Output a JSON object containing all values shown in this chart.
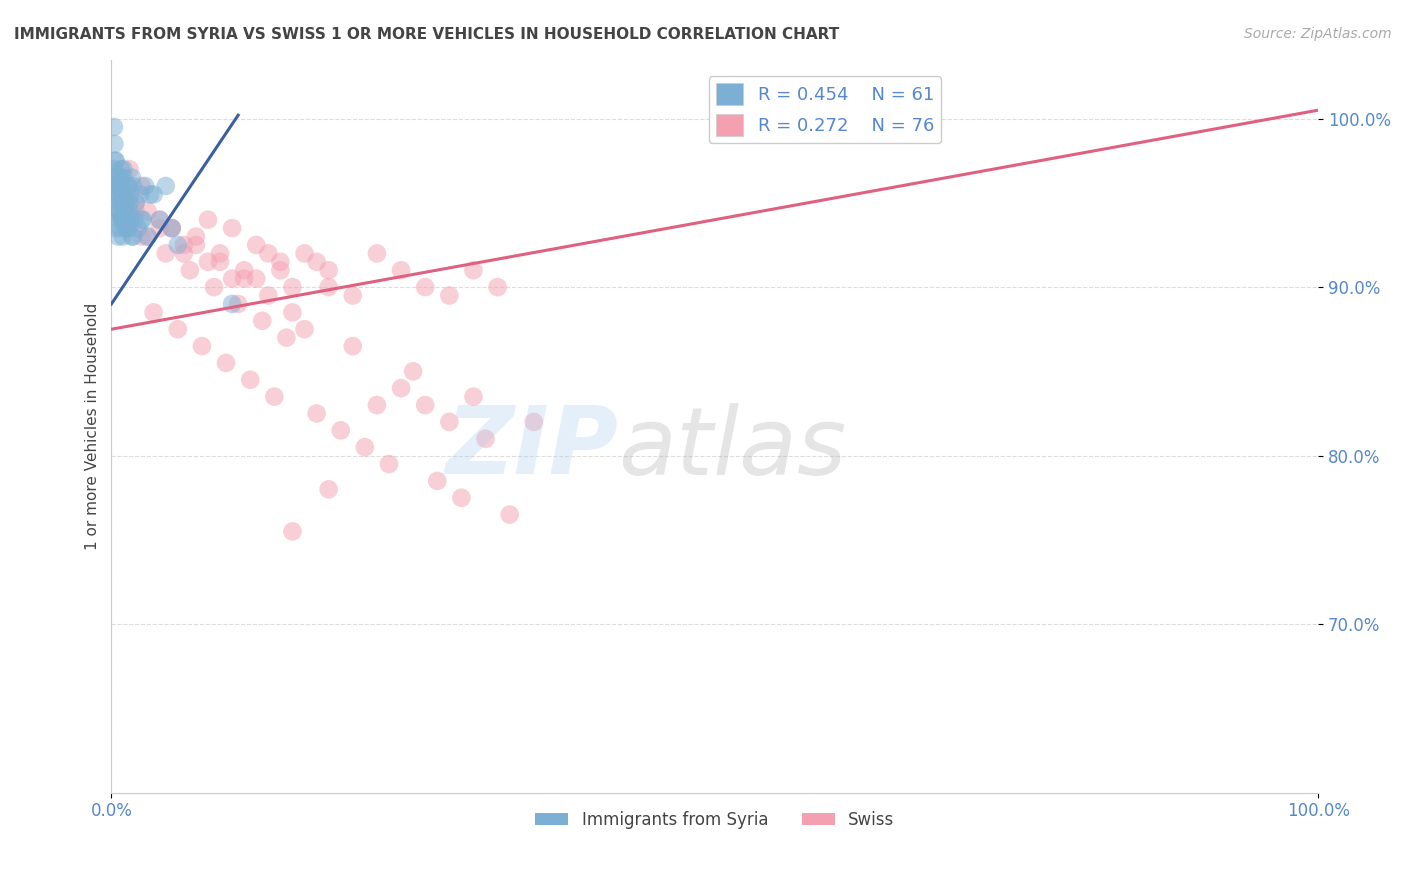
{
  "title": "IMMIGRANTS FROM SYRIA VS SWISS 1 OR MORE VEHICLES IN HOUSEHOLD CORRELATION CHART",
  "source_text": "Source: ZipAtlas.com",
  "ylabel": "1 or more Vehicles in Household",
  "xlim": [
    0.0,
    100.0
  ],
  "ylim": [
    60.0,
    103.5
  ],
  "y_ticks": [
    70.0,
    80.0,
    90.0,
    100.0
  ],
  "y_tick_labels": [
    "70.0%",
    "80.0%",
    "90.0%",
    "100.0%"
  ],
  "x_tick_labels": [
    "0.0%",
    "100.0%"
  ],
  "legend_r_blue": "R = 0.454",
  "legend_n_blue": "N = 61",
  "legend_r_pink": "R = 0.272",
  "legend_n_pink": "N = 76",
  "blue_color": "#7BAFD4",
  "pink_color": "#F4A0B0",
  "blue_line_color": "#3B5FA0",
  "pink_line_color": "#E06080",
  "title_color": "#444444",
  "axis_label_color": "#444444",
  "tick_color": "#5588CC",
  "source_color": "#AAAAAA",
  "grid_color": "#DDDDDD",
  "blue_scatter_x": [
    0.1,
    0.15,
    0.2,
    0.25,
    0.3,
    0.35,
    0.4,
    0.45,
    0.5,
    0.55,
    0.6,
    0.65,
    0.7,
    0.75,
    0.8,
    0.85,
    0.9,
    0.95,
    1.0,
    1.1,
    1.2,
    1.3,
    1.4,
    1.5,
    1.6,
    1.7,
    1.8,
    1.9,
    2.0,
    2.2,
    2.4,
    2.6,
    2.8,
    3.0,
    3.5,
    4.0,
    4.5,
    5.0,
    0.3,
    0.4,
    0.5,
    0.6,
    0.7,
    0.8,
    0.9,
    1.0,
    1.1,
    1.2,
    1.3,
    1.4,
    1.5,
    1.6,
    1.7,
    1.8,
    0.2,
    0.25,
    0.35,
    2.5,
    3.2,
    5.5,
    10.0
  ],
  "blue_scatter_y": [
    96.5,
    95.5,
    97.0,
    94.5,
    96.0,
    93.5,
    95.5,
    94.0,
    96.0,
    93.0,
    95.0,
    94.5,
    96.5,
    93.5,
    97.0,
    94.0,
    95.5,
    93.0,
    96.5,
    94.0,
    95.0,
    93.5,
    96.0,
    94.5,
    95.5,
    93.0,
    96.0,
    94.0,
    95.0,
    93.5,
    95.5,
    94.0,
    96.0,
    93.0,
    95.5,
    94.0,
    96.0,
    93.5,
    97.5,
    96.5,
    95.5,
    94.5,
    96.0,
    95.0,
    94.0,
    97.0,
    95.5,
    94.5,
    96.0,
    93.5,
    95.0,
    94.0,
    96.5,
    93.0,
    99.5,
    98.5,
    97.5,
    94.0,
    95.5,
    92.5,
    89.0
  ],
  "pink_scatter_x": [
    0.5,
    1.0,
    1.5,
    2.0,
    2.5,
    3.0,
    4.0,
    5.0,
    6.0,
    7.0,
    8.0,
    9.0,
    10.0,
    11.0,
    12.0,
    13.0,
    14.0,
    15.0,
    17.0,
    18.0,
    20.0,
    22.0,
    24.0,
    26.0,
    28.0,
    30.0,
    32.0,
    2.0,
    4.0,
    6.0,
    8.0,
    10.0,
    12.0,
    14.0,
    16.0,
    18.0,
    3.0,
    5.0,
    7.0,
    9.0,
    11.0,
    13.0,
    15.0,
    16.0,
    20.0,
    25.0,
    30.0,
    35.0,
    1.0,
    2.5,
    4.5,
    6.5,
    8.5,
    10.5,
    12.5,
    14.5,
    22.0,
    3.5,
    5.5,
    7.5,
    9.5,
    11.5,
    13.5,
    17.0,
    19.0,
    21.0,
    23.0,
    27.0,
    29.0,
    33.0,
    24.0,
    26.0,
    28.0,
    31.0,
    18.0,
    15.0
  ],
  "pink_scatter_y": [
    96.0,
    95.0,
    97.0,
    94.5,
    96.0,
    93.0,
    94.0,
    93.5,
    92.5,
    93.0,
    94.0,
    92.0,
    93.5,
    91.0,
    90.5,
    92.0,
    91.5,
    90.0,
    91.5,
    90.0,
    89.5,
    92.0,
    91.0,
    90.0,
    89.5,
    91.0,
    90.0,
    95.0,
    93.5,
    92.0,
    91.5,
    90.5,
    92.5,
    91.0,
    92.0,
    91.0,
    94.5,
    93.5,
    92.5,
    91.5,
    90.5,
    89.5,
    88.5,
    87.5,
    86.5,
    85.0,
    83.5,
    82.0,
    94.0,
    93.0,
    92.0,
    91.0,
    90.0,
    89.0,
    88.0,
    87.0,
    83.0,
    88.5,
    87.5,
    86.5,
    85.5,
    84.5,
    83.5,
    82.5,
    81.5,
    80.5,
    79.5,
    78.5,
    77.5,
    76.5,
    84.0,
    83.0,
    82.0,
    81.0,
    78.0,
    75.5
  ],
  "blue_trend_x": [
    0.0,
    10.5
  ],
  "blue_trend_y": [
    89.0,
    100.2
  ],
  "pink_trend_x": [
    0.0,
    100.0
  ],
  "pink_trend_y": [
    87.5,
    100.5
  ]
}
